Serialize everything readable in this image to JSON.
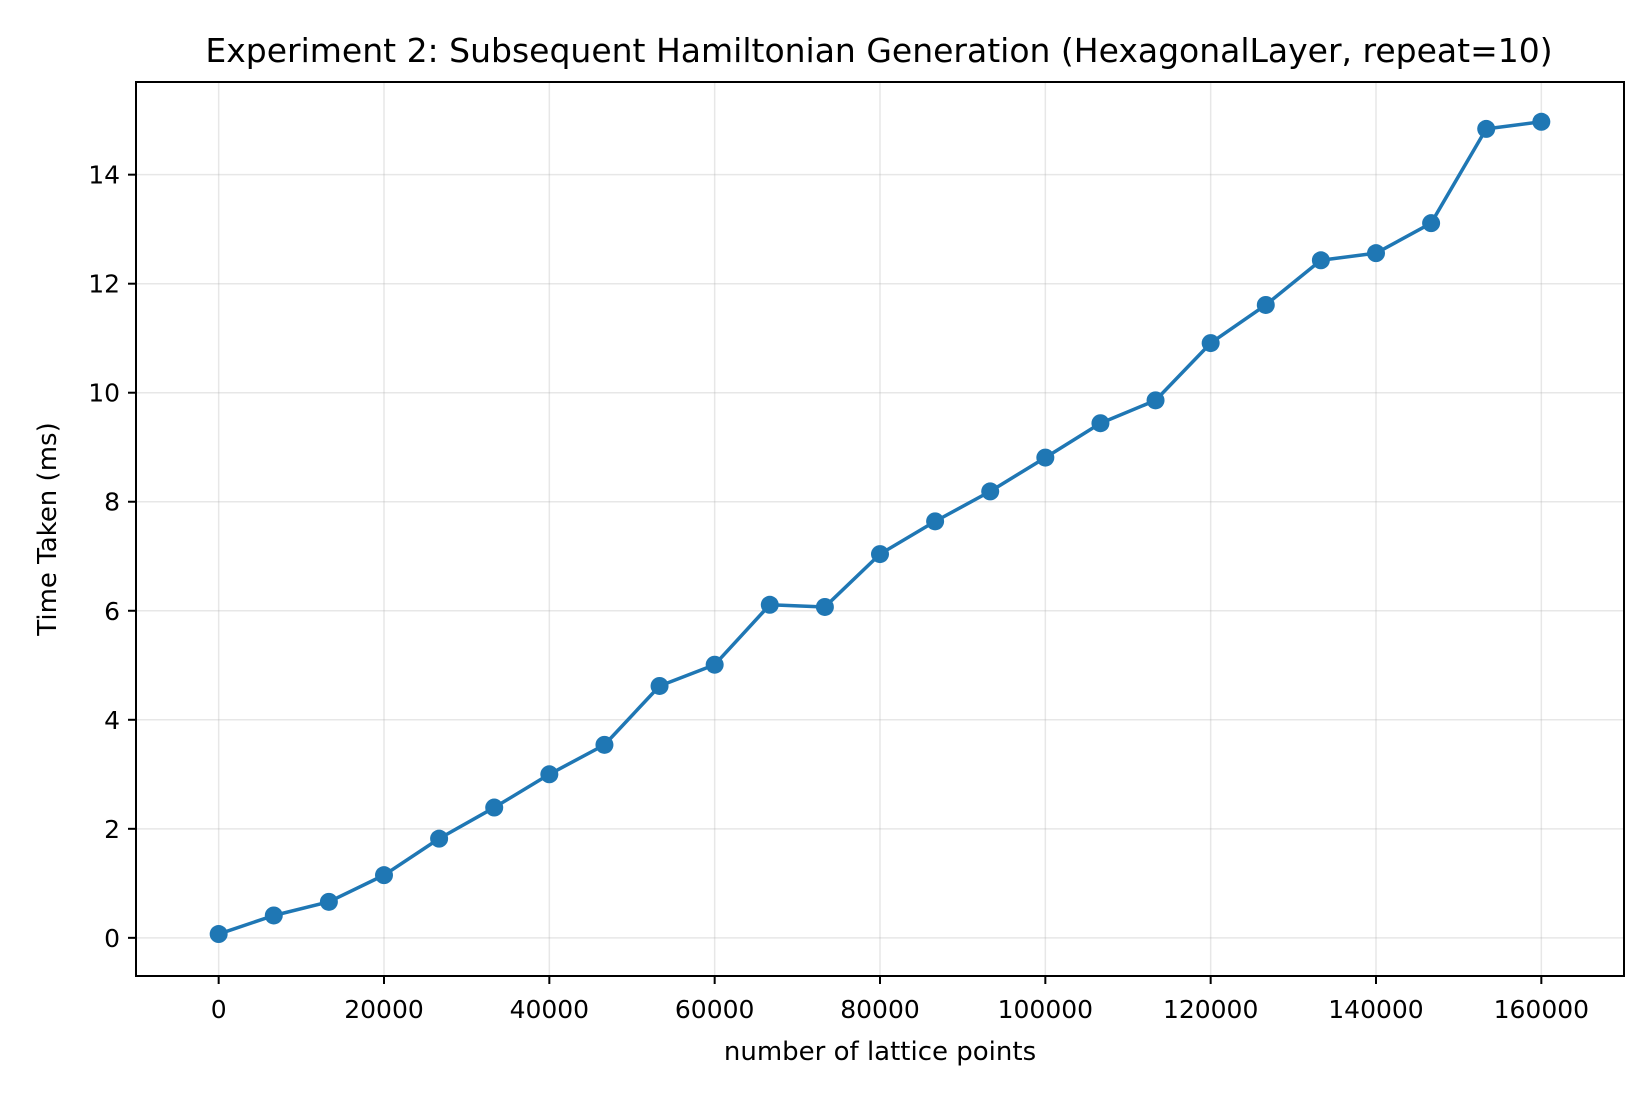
{
  "chart_data": {
    "type": "line",
    "title": "Experiment 2: Subsequent Hamiltonian Generation (HexagonalLayer, repeat=10)",
    "xlabel": "number of lattice points",
    "ylabel": "Time Taken (ms)",
    "xlim": [
      -10000,
      170000
    ],
    "ylim": [
      -0.7,
      15.7
    ],
    "grid": true,
    "xticks": [
      0,
      20000,
      40000,
      60000,
      80000,
      100000,
      120000,
      140000,
      160000
    ],
    "xtick_labels": [
      "0",
      "20000",
      "40000",
      "60000",
      "80000",
      "100000",
      "120000",
      "140000",
      "160000"
    ],
    "yticks": [
      0,
      2,
      4,
      6,
      8,
      10,
      12,
      14
    ],
    "ytick_labels": [
      "0",
      "2",
      "4",
      "6",
      "8",
      "10",
      "12",
      "14"
    ],
    "series": [
      {
        "color": "#1f77b4",
        "marker": "circle",
        "x": [
          0,
          6667,
          13333,
          20000,
          26667,
          33333,
          40000,
          46667,
          53333,
          60000,
          66667,
          73333,
          80000,
          86667,
          93333,
          100000,
          106667,
          113333,
          120000,
          126667,
          133333,
          140000,
          146667,
          153333,
          160000
        ],
        "y": [
          0.07,
          0.41,
          0.66,
          1.15,
          1.82,
          2.39,
          3.0,
          3.54,
          4.62,
          5.01,
          6.11,
          6.07,
          7.04,
          7.64,
          8.19,
          8.81,
          9.44,
          9.86,
          10.91,
          11.61,
          12.43,
          12.56,
          13.11,
          14.84,
          14.97
        ]
      }
    ]
  }
}
